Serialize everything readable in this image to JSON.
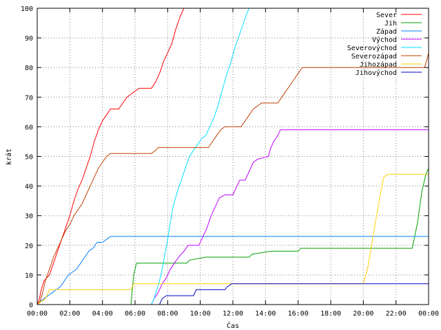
{
  "chart_data": {
    "type": "line",
    "title": "",
    "xlabel": "Čas",
    "ylabel": "krát",
    "xlim": [
      0,
      1440
    ],
    "ylim": [
      0,
      100
    ],
    "grid": true,
    "legend_position": "top-right",
    "x_ticks": [
      {
        "value": 0,
        "label": "00:00"
      },
      {
        "value": 120,
        "label": "02:00"
      },
      {
        "value": 240,
        "label": "04:00"
      },
      {
        "value": 360,
        "label": "06:00"
      },
      {
        "value": 480,
        "label": "08:00"
      },
      {
        "value": 600,
        "label": "10:00"
      },
      {
        "value": 720,
        "label": "12:00"
      },
      {
        "value": 840,
        "label": "14:00"
      },
      {
        "value": 960,
        "label": "16:00"
      },
      {
        "value": 1080,
        "label": "18:00"
      },
      {
        "value": 1200,
        "label": "20:00"
      },
      {
        "value": 1320,
        "label": "22:00"
      },
      {
        "value": 1440,
        "label": "00:00"
      }
    ],
    "y_ticks": [
      {
        "value": 0,
        "label": "0"
      },
      {
        "value": 10,
        "label": "10"
      },
      {
        "value": 20,
        "label": "20"
      },
      {
        "value": 30,
        "label": "30"
      },
      {
        "value": 40,
        "label": "40"
      },
      {
        "value": 50,
        "label": "50"
      },
      {
        "value": 60,
        "label": "60"
      },
      {
        "value": 70,
        "label": "70"
      },
      {
        "value": 80,
        "label": "80"
      },
      {
        "value": 90,
        "label": "90"
      },
      {
        "value": 100,
        "label": "100"
      }
    ],
    "series": [
      {
        "name": "Sever",
        "color": "#ff0000",
        "points": [
          [
            0,
            0
          ],
          [
            8,
            2
          ],
          [
            15,
            5
          ],
          [
            25,
            8
          ],
          [
            45,
            10
          ],
          [
            60,
            14
          ],
          [
            75,
            18
          ],
          [
            90,
            22
          ],
          [
            105,
            26
          ],
          [
            120,
            30
          ],
          [
            135,
            35
          ],
          [
            150,
            39
          ],
          [
            165,
            42
          ],
          [
            180,
            46
          ],
          [
            195,
            50
          ],
          [
            210,
            55
          ],
          [
            225,
            59
          ],
          [
            240,
            62
          ],
          [
            255,
            64
          ],
          [
            270,
            66
          ],
          [
            300,
            66
          ],
          [
            315,
            68
          ],
          [
            330,
            70
          ],
          [
            345,
            71
          ],
          [
            360,
            72
          ],
          [
            375,
            73
          ],
          [
            420,
            73
          ],
          [
            435,
            75
          ],
          [
            450,
            78
          ],
          [
            465,
            82
          ],
          [
            480,
            85
          ],
          [
            495,
            88
          ],
          [
            510,
            93
          ],
          [
            525,
            97
          ],
          [
            540,
            100
          ]
        ]
      },
      {
        "name": "Jih",
        "color": "#00a000",
        "points": [
          [
            0,
            0
          ],
          [
            345,
            0
          ],
          [
            355,
            10
          ],
          [
            365,
            14
          ],
          [
            550,
            14
          ],
          [
            560,
            15
          ],
          [
            620,
            16
          ],
          [
            780,
            16
          ],
          [
            790,
            17
          ],
          [
            860,
            18
          ],
          [
            960,
            18
          ],
          [
            970,
            19
          ],
          [
            1380,
            19
          ],
          [
            1400,
            28
          ],
          [
            1415,
            38
          ],
          [
            1430,
            44
          ],
          [
            1440,
            46
          ]
        ]
      },
      {
        "name": "Západ",
        "color": "#0080ff",
        "points": [
          [
            0,
            0
          ],
          [
            10,
            1
          ],
          [
            25,
            2
          ],
          [
            40,
            3
          ],
          [
            55,
            4
          ],
          [
            70,
            5
          ],
          [
            85,
            6
          ],
          [
            100,
            8
          ],
          [
            115,
            10
          ],
          [
            130,
            11
          ],
          [
            145,
            12
          ],
          [
            160,
            14
          ],
          [
            175,
            16
          ],
          [
            190,
            18
          ],
          [
            205,
            19
          ],
          [
            220,
            21
          ],
          [
            240,
            21
          ],
          [
            255,
            22
          ],
          [
            270,
            23
          ],
          [
            1440,
            23
          ]
        ]
      },
      {
        "name": "Východ",
        "color": "#c000ff",
        "points": [
          [
            0,
            0
          ],
          [
            420,
            0
          ],
          [
            430,
            2
          ],
          [
            445,
            4
          ],
          [
            460,
            7
          ],
          [
            475,
            9
          ],
          [
            490,
            12
          ],
          [
            505,
            14
          ],
          [
            520,
            16
          ],
          [
            540,
            18
          ],
          [
            555,
            20
          ],
          [
            595,
            20
          ],
          [
            610,
            23
          ],
          [
            625,
            26
          ],
          [
            640,
            30
          ],
          [
            655,
            33
          ],
          [
            670,
            36
          ],
          [
            690,
            37
          ],
          [
            720,
            37
          ],
          [
            735,
            40
          ],
          [
            745,
            42
          ],
          [
            765,
            42
          ],
          [
            780,
            45
          ],
          [
            795,
            48
          ],
          [
            810,
            49
          ],
          [
            850,
            50
          ],
          [
            860,
            53
          ],
          [
            870,
            55
          ],
          [
            885,
            57
          ],
          [
            895,
            59
          ],
          [
            1440,
            59
          ]
        ]
      },
      {
        "name": "Severovýchod",
        "color": "#00e0ff",
        "points": [
          [
            0,
            0
          ],
          [
            420,
            0
          ],
          [
            430,
            2
          ],
          [
            440,
            5
          ],
          [
            450,
            8
          ],
          [
            460,
            12
          ],
          [
            470,
            17
          ],
          [
            480,
            22
          ],
          [
            490,
            28
          ],
          [
            500,
            33
          ],
          [
            515,
            38
          ],
          [
            530,
            42
          ],
          [
            545,
            46
          ],
          [
            560,
            50
          ],
          [
            575,
            52
          ],
          [
            590,
            54
          ],
          [
            605,
            56
          ],
          [
            620,
            57
          ],
          [
            635,
            60
          ],
          [
            650,
            63
          ],
          [
            665,
            67
          ],
          [
            680,
            72
          ],
          [
            695,
            77
          ],
          [
            710,
            81
          ],
          [
            725,
            86
          ],
          [
            740,
            90
          ],
          [
            755,
            94
          ],
          [
            770,
            98
          ],
          [
            780,
            100
          ]
        ]
      },
      {
        "name": "Severozápad",
        "color": "#c04000",
        "points": [
          [
            0,
            0
          ],
          [
            10,
            1
          ],
          [
            20,
            4
          ],
          [
            30,
            8
          ],
          [
            45,
            12
          ],
          [
            60,
            16
          ],
          [
            75,
            19
          ],
          [
            90,
            22
          ],
          [
            105,
            25
          ],
          [
            120,
            27
          ],
          [
            135,
            30
          ],
          [
            150,
            32
          ],
          [
            165,
            34
          ],
          [
            180,
            37
          ],
          [
            195,
            40
          ],
          [
            210,
            43
          ],
          [
            225,
            46
          ],
          [
            240,
            48
          ],
          [
            255,
            50
          ],
          [
            270,
            51
          ],
          [
            420,
            51
          ],
          [
            435,
            52
          ],
          [
            445,
            53
          ],
          [
            630,
            53
          ],
          [
            645,
            55
          ],
          [
            660,
            57
          ],
          [
            675,
            59
          ],
          [
            690,
            60
          ],
          [
            750,
            60
          ],
          [
            765,
            62
          ],
          [
            780,
            64
          ],
          [
            795,
            66
          ],
          [
            810,
            67
          ],
          [
            825,
            68
          ],
          [
            885,
            68
          ],
          [
            900,
            70
          ],
          [
            915,
            72
          ],
          [
            930,
            74
          ],
          [
            945,
            76
          ],
          [
            960,
            78
          ],
          [
            975,
            80
          ],
          [
            1425,
            80
          ],
          [
            1435,
            83
          ],
          [
            1440,
            85
          ]
        ]
      },
      {
        "name": "Jihozápad",
        "color": "#ffd000",
        "points": [
          [
            0,
            0
          ],
          [
            30,
            2
          ],
          [
            45,
            5
          ],
          [
            345,
            5
          ],
          [
            355,
            7
          ],
          [
            1200,
            7
          ],
          [
            1215,
            12
          ],
          [
            1230,
            20
          ],
          [
            1245,
            28
          ],
          [
            1260,
            36
          ],
          [
            1275,
            43
          ],
          [
            1290,
            44
          ],
          [
            1440,
            44
          ]
        ]
      },
      {
        "name": "Jihovýchod",
        "color": "#0000c0",
        "points": [
          [
            0,
            0
          ],
          [
            450,
            0
          ],
          [
            460,
            2
          ],
          [
            475,
            3
          ],
          [
            575,
            3
          ],
          [
            585,
            5
          ],
          [
            690,
            5
          ],
          [
            700,
            6
          ],
          [
            715,
            7
          ],
          [
            1440,
            7
          ]
        ]
      }
    ]
  }
}
